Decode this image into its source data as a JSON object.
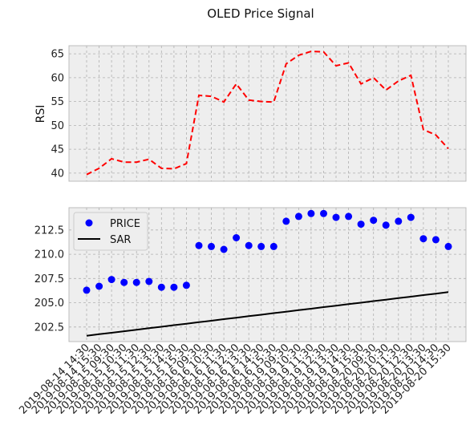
{
  "figure": {
    "title": "OLED Price Signal"
  },
  "chart_data": [
    {
      "type": "line",
      "ylabel": "RSI",
      "ylim": [
        38.3,
        66.7
      ],
      "yticks": [
        40,
        45,
        50,
        55,
        60,
        65
      ],
      "grid": true,
      "series": [
        {
          "name": "",
          "color": "#ff0000",
          "style": "dashed",
          "values": [
            39.7,
            41.0,
            43.0,
            42.3,
            42.3,
            42.9,
            41.0,
            40.9,
            42.0,
            56.3,
            56.1,
            54.9,
            58.7,
            55.3,
            55.0,
            54.9,
            62.9,
            64.7,
            65.5,
            65.4,
            62.5,
            63.1,
            58.7,
            60.0,
            57.4,
            59.3,
            60.5,
            49.1,
            48.0,
            45.1
          ]
        }
      ]
    },
    {
      "type": "line",
      "ylim": [
        201.0,
        214.8
      ],
      "yticks": [
        202.5,
        205.0,
        207.5,
        210.0,
        212.5
      ],
      "ytick_labels": [
        "202.5",
        "205.0",
        "207.5",
        "210.0",
        "212.5"
      ],
      "grid": true,
      "legend_position": "top-left",
      "x": [
        "2019-08-14 14:30",
        "2019-08-14 15:30",
        "2019-08-15 09:30",
        "2019-08-15 10:30",
        "2019-08-15 11:30",
        "2019-08-15 12:30",
        "2019-08-15 13:30",
        "2019-08-15 14:30",
        "2019-08-15 15:30",
        "2019-08-16 09:30",
        "2019-08-16 10:30",
        "2019-08-16 11:30",
        "2019-08-16 12:30",
        "2019-08-16 13:30",
        "2019-08-16 14:30",
        "2019-08-16 15:30",
        "2019-08-19 09:30",
        "2019-08-19 10:30",
        "2019-08-19 11:30",
        "2019-08-19 12:30",
        "2019-08-19 13:30",
        "2019-08-19 14:30",
        "2019-08-19 15:30",
        "2019-08-20 09:30",
        "2019-08-20 10:30",
        "2019-08-20 11:30",
        "2019-08-20 12:30",
        "2019-08-20 13:30",
        "2019-08-20 14:30",
        "2019-08-20 15:30"
      ],
      "series": [
        {
          "name": "PRICE",
          "color": "#0000ff",
          "style": "markers",
          "values": [
            206.3,
            206.7,
            207.4,
            207.1,
            207.1,
            207.2,
            206.6,
            206.6,
            206.8,
            210.9,
            210.8,
            210.5,
            211.7,
            210.9,
            210.8,
            210.8,
            213.4,
            213.9,
            214.2,
            214.2,
            213.8,
            213.9,
            213.1,
            213.5,
            213.0,
            213.4,
            213.8,
            211.6,
            211.5,
            210.8
          ]
        },
        {
          "name": "SAR",
          "color": "#000000",
          "style": "solid",
          "values": [
            201.6,
            201.76,
            201.91,
            202.07,
            202.22,
            202.38,
            202.53,
            202.69,
            202.84,
            203.0,
            203.15,
            203.31,
            203.46,
            203.62,
            203.77,
            203.93,
            204.08,
            204.24,
            204.39,
            204.55,
            204.7,
            204.86,
            205.01,
            205.17,
            205.32,
            205.48,
            205.63,
            205.79,
            205.94,
            206.1
          ]
        }
      ]
    }
  ]
}
